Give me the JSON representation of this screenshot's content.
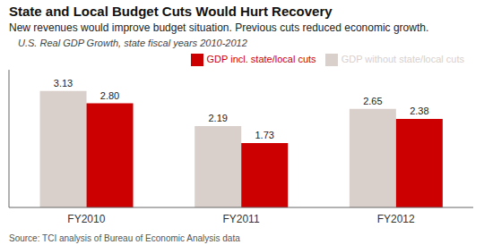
{
  "chart_data": {
    "type": "bar",
    "title": "State and Local Budget Cuts Would Hurt Recovery",
    "subtitle": "New revenues would improve budget situation. Previous cuts reduced economic growth.",
    "ylabel": "U.S. Real GDP Growth, state fiscal years 2010-2012",
    "annotations": [
      "Source: TCI analysis of Bureau of Economic Analysis data"
    ],
    "categories": [
      "FY2010",
      "FY2011",
      "FY2012"
    ],
    "series": [
      {
        "name": "GDP without state/local cuts",
        "color": "#d9d0cc",
        "values": [
          3.13,
          2.19,
          2.65
        ]
      },
      {
        "name": "GDP incl. state/local cuts",
        "color": "#cc0000",
        "values": [
          2.8,
          1.73,
          2.38
        ],
        "value_labels": [
          "2.80",
          "1.73",
          "2.38"
        ]
      }
    ],
    "ylim": [
      0,
      3.7
    ],
    "grid": false,
    "legend": "upper right",
    "data_labels": true,
    "tick_labels": "x"
  }
}
